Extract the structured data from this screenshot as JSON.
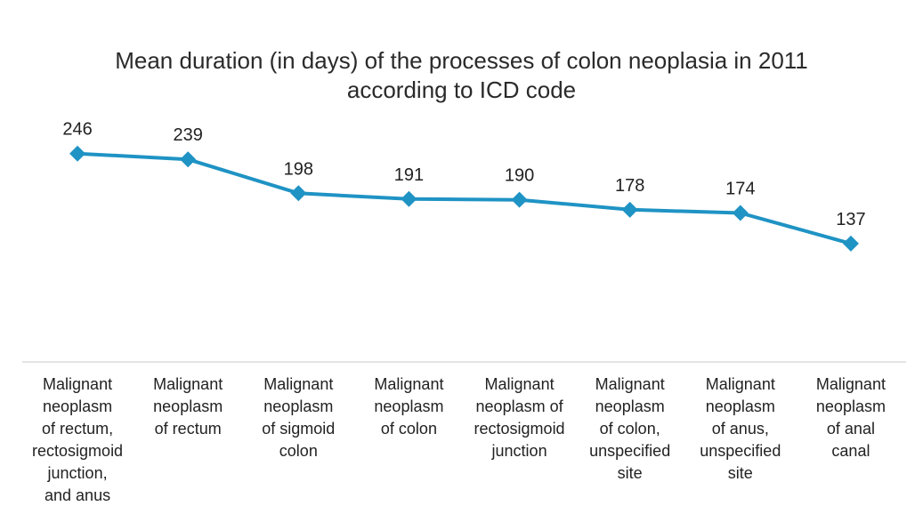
{
  "chart_data": {
    "type": "line",
    "title_lines": [
      "Mean duration (in days) of the processes of colon neoplasia in 2011",
      "according to ICD code"
    ],
    "categories": [
      [
        "Malignant",
        "neoplasm",
        "of rectum,",
        "rectosigmoid",
        "junction,",
        "and anus"
      ],
      [
        "Malignant",
        "neoplasm",
        "of rectum"
      ],
      [
        "Malignant",
        "neoplasm",
        "of sigmoid",
        "colon"
      ],
      [
        "Malignant",
        "neoplasm",
        "of colon"
      ],
      [
        "Malignant",
        "neoplasm of",
        "rectosigmoid",
        "junction"
      ],
      [
        "Malignant",
        "neoplasm",
        "of colon,",
        "unspecified",
        "site"
      ],
      [
        "Malignant",
        "neoplasm",
        "of anus,",
        "unspecified",
        "site"
      ],
      [
        "Malignant",
        "neoplasm",
        "of anal",
        "canal"
      ]
    ],
    "values": [
      246,
      239,
      198,
      191,
      190,
      178,
      174,
      137
    ],
    "data_labels": [
      "246",
      "239",
      "198",
      "191",
      "190",
      "178",
      "174",
      "137"
    ],
    "ylim": [
      0,
      250
    ],
    "grid": false,
    "legend": "none",
    "line_color": "#1f93c4"
  }
}
